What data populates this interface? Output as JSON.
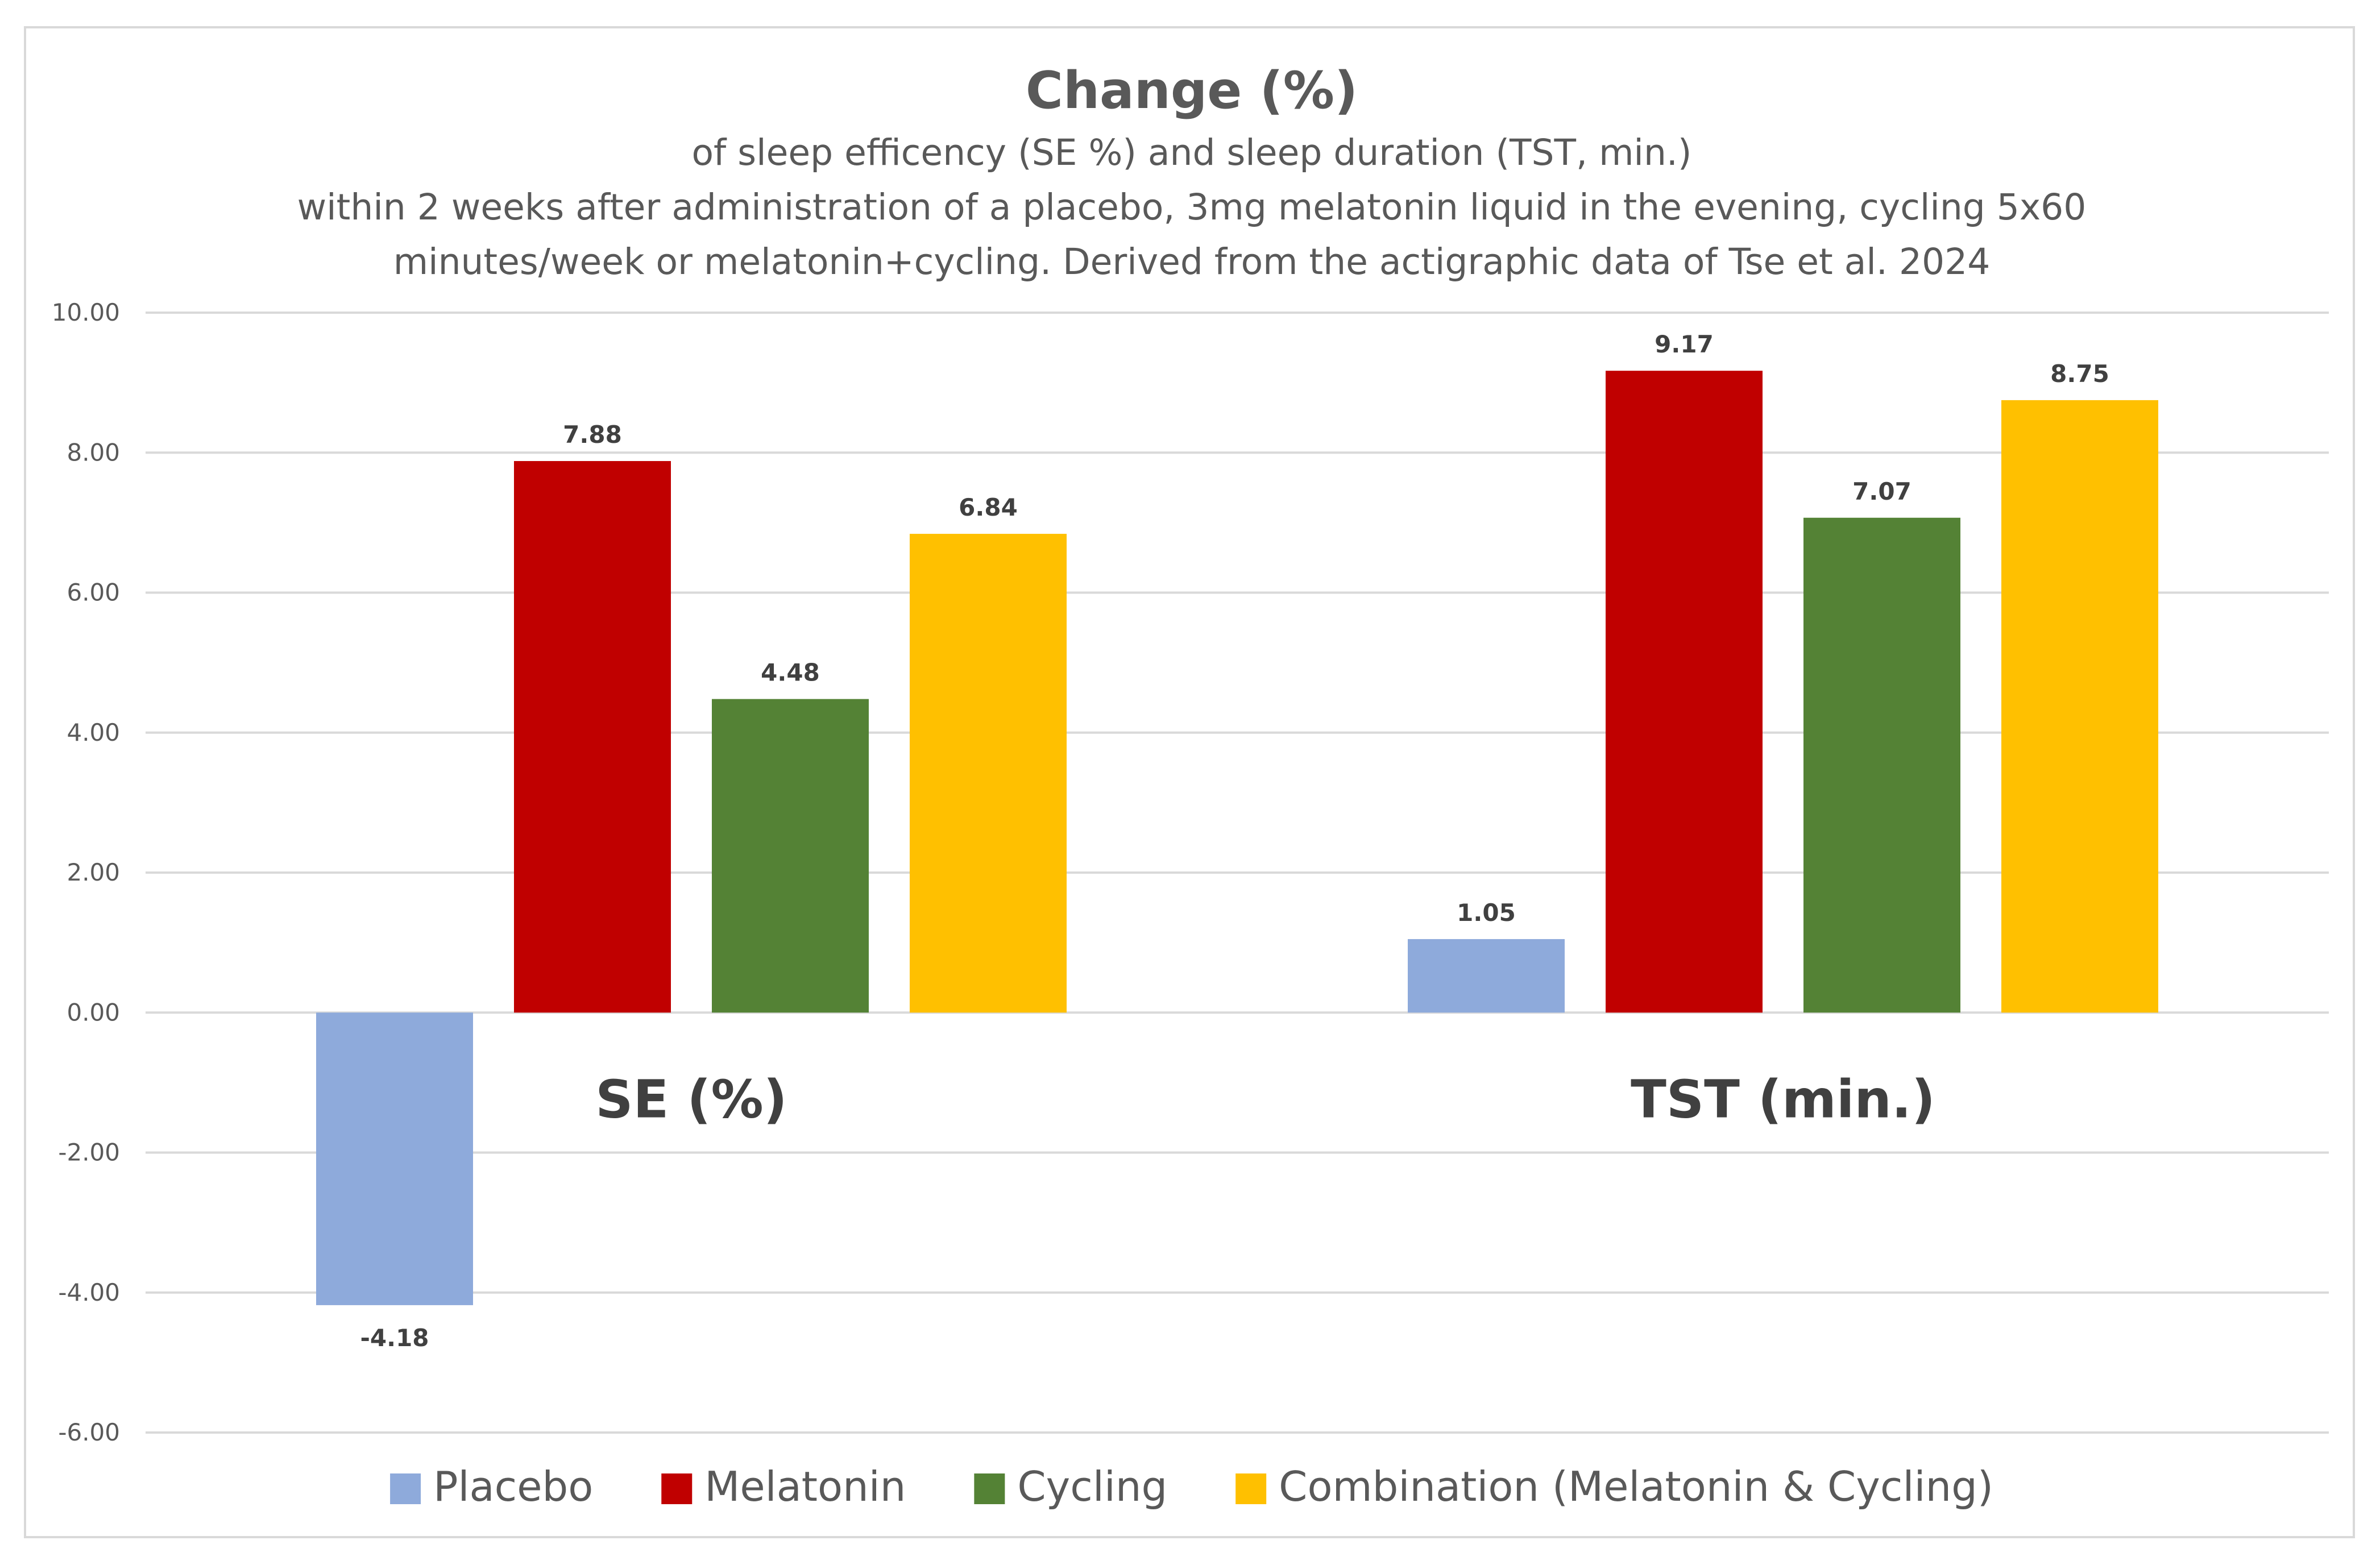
{
  "chart_data": {
    "type": "bar",
    "title": "Change (%)",
    "subtitle_lines": [
      "of sleep efficency (SE %) and sleep duration (TST, min.)",
      "within 2 weeks after administration of a placebo, 3mg melatonin liquid in the evening, cycling 5x60",
      "minutes/week or melatonin+cycling. Derived from the actigraphic data of Tse et al. 2024"
    ],
    "categories": [
      "SE (%)",
      "TST (min.)"
    ],
    "series": [
      {
        "name": "Placebo",
        "color": "#8eaadb",
        "values": [
          -4.18,
          1.05
        ],
        "labels": [
          "-4.18",
          "1.05"
        ]
      },
      {
        "name": "Melatonin",
        "color": "#c00000",
        "values": [
          7.88,
          9.17
        ],
        "labels": [
          "7.88",
          "9.17"
        ]
      },
      {
        "name": "Cycling",
        "color": "#548235",
        "values": [
          4.48,
          7.07
        ],
        "labels": [
          "4.48",
          "7.07"
        ]
      },
      {
        "name": "Combination (Melatonin & Cycling)",
        "color": "#ffc000",
        "values": [
          6.84,
          8.75
        ],
        "labels": [
          "6.84",
          "8.75"
        ]
      }
    ],
    "ylim": [
      -6,
      10
    ],
    "yticks": [
      {
        "value": 10,
        "label": "10.00"
      },
      {
        "value": 8,
        "label": "8.00"
      },
      {
        "value": 6,
        "label": "6.00"
      },
      {
        "value": 4,
        "label": "4.00"
      },
      {
        "value": 2,
        "label": "2.00"
      },
      {
        "value": 0,
        "label": "0.00"
      },
      {
        "value": -2,
        "label": "-2.00"
      },
      {
        "value": -4,
        "label": "-4.00"
      },
      {
        "value": -6,
        "label": "-6.00"
      }
    ],
    "xlabel": "",
    "ylabel": "",
    "grid": true,
    "legend_position": "bottom"
  }
}
